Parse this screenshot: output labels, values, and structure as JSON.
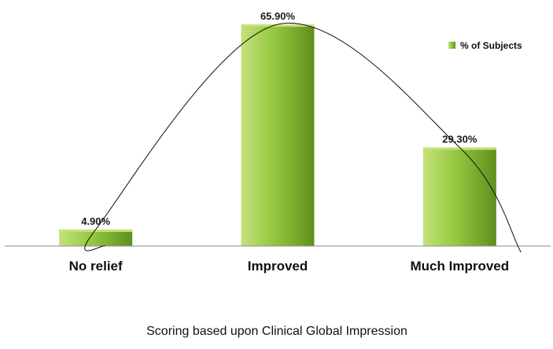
{
  "chart_data": {
    "type": "bar",
    "categories": [
      "No relief",
      "Improved",
      "Much Improved"
    ],
    "series": [
      {
        "name": "% of Subjects",
        "values": [
          4.9,
          65.9,
          29.3
        ],
        "data_labels": [
          "4.90%",
          "65.90%",
          "29.30%"
        ],
        "color": "#8fc63f"
      }
    ],
    "trendline": "polynomial curve through bar tops",
    "xlabel": "Scoring based upon Clinical Global Impression",
    "ylabel": "",
    "ylim": [
      0,
      70
    ],
    "grid": false,
    "y_axis_visible": false,
    "legend": "top-right"
  },
  "colors": {
    "bar_light": "#c4e27a",
    "bar_main": "#93c83f",
    "bar_dark": "#5f8f1e",
    "axis": "#8c8c8c",
    "curve": "#111111"
  }
}
